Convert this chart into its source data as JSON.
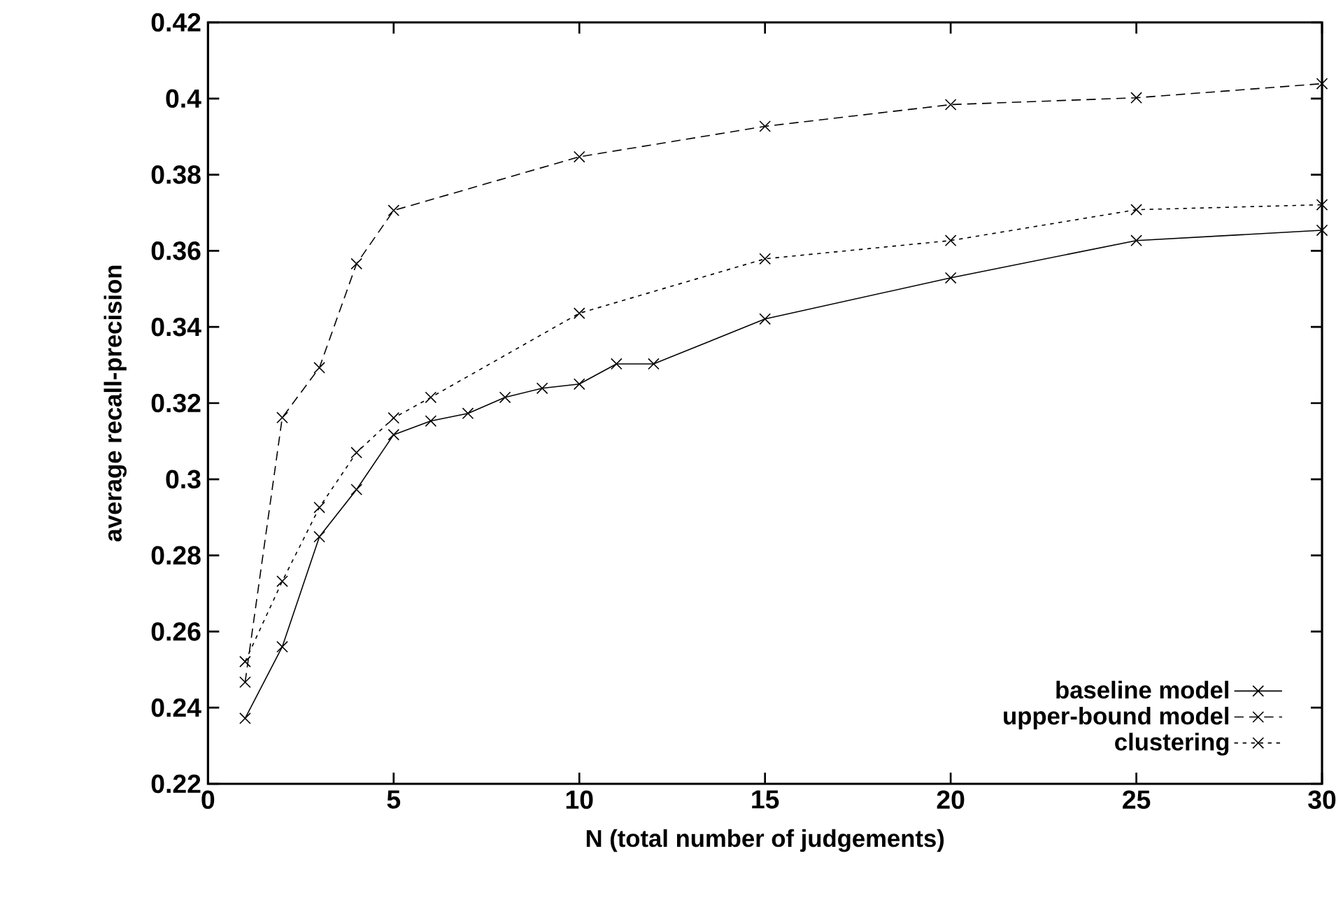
{
  "chart_data": {
    "type": "line",
    "xlabel": "N (total number of judgements)",
    "ylabel": "average recall-precision",
    "xlim": [
      0,
      30
    ],
    "xticks": [
      0,
      5,
      10,
      15,
      20,
      25,
      30
    ],
    "ylim": [
      0.22,
      0.42
    ],
    "yticks": [
      0.22,
      0.24,
      0.26,
      0.28,
      0.3,
      0.32,
      0.34,
      0.36,
      0.38,
      0.4,
      0.42
    ],
    "legend": "bottom right",
    "grid": false,
    "series": [
      {
        "name": "baseline model",
        "color": "#000000",
        "line_style": "solid",
        "marker": "cross",
        "x": [
          1,
          2,
          3,
          4,
          5,
          6,
          7,
          8,
          9,
          10,
          11,
          12,
          15,
          20,
          25,
          30
        ],
        "values": [
          0.2372,
          0.256,
          0.2849,
          0.2973,
          0.3117,
          0.3153,
          0.3173,
          0.3215,
          0.3239,
          0.325,
          0.3303,
          0.3303,
          0.3421,
          0.3529,
          0.3627,
          0.3654
        ]
      },
      {
        "name": "upper-bound model",
        "color": "#000000",
        "line_style": "dashed",
        "marker": "cross",
        "x": [
          1,
          2,
          3,
          4,
          5,
          10,
          15,
          20,
          25,
          30
        ],
        "values": [
          0.2467,
          0.3162,
          0.3293,
          0.3566,
          0.3706,
          0.3847,
          0.3927,
          0.3984,
          0.4002,
          0.4039
        ]
      },
      {
        "name": "clustering",
        "color": "#000000",
        "line_style": "dotted",
        "marker": "cross",
        "x": [
          1,
          2,
          3,
          4,
          5,
          6,
          10,
          15,
          20,
          25,
          30
        ],
        "values": [
          0.2521,
          0.2732,
          0.2926,
          0.307,
          0.3161,
          0.3215,
          0.3436,
          0.3579,
          0.3627,
          0.3708,
          0.3721
        ]
      }
    ]
  }
}
